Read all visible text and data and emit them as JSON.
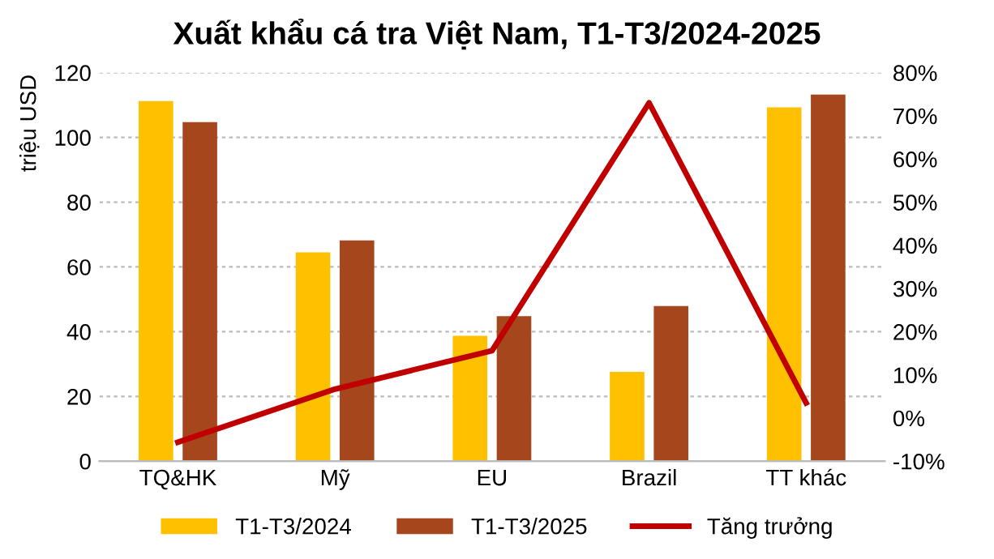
{
  "chart_data": {
    "type": "bar",
    "title": "Xuất khẩu cá tra Việt Nam, T1-T3/2024-2025",
    "ylabel": "triệu USD",
    "categories": [
      "TQ&HK",
      "Mỹ",
      "EU",
      "Brazil",
      "TT khác"
    ],
    "series": [
      {
        "name": "T1-T3/2024",
        "color": "#ffc000",
        "values": [
          111.2,
          64.5,
          38.7,
          27.6,
          109.3
        ]
      },
      {
        "name": "T1-T3/2025",
        "color": "#a5461c",
        "values": [
          104.7,
          68.2,
          44.8,
          47.9,
          113.2
        ]
      },
      {
        "name": "Tăng trưởng",
        "type": "line",
        "axis": "y2",
        "color": "#c00000",
        "values": [
          -5.6,
          6.7,
          15.6,
          73.0,
          3.5
        ]
      }
    ],
    "ylim": [
      0,
      120
    ],
    "yticks": [
      0,
      20,
      40,
      60,
      80,
      100,
      120
    ],
    "y2lim": [
      -10,
      80
    ],
    "y2ticks": [
      {
        "value": -10,
        "label": "-10%"
      },
      {
        "value": 0,
        "label": "0%"
      },
      {
        "value": 10,
        "label": "10%"
      },
      {
        "value": 20,
        "label": "20%"
      },
      {
        "value": 30,
        "label": "30%"
      },
      {
        "value": 40,
        "label": "40%"
      },
      {
        "value": 50,
        "label": "50%"
      },
      {
        "value": 60,
        "label": "60%"
      },
      {
        "value": 70,
        "label": "70%"
      },
      {
        "value": 80,
        "label": "80%"
      }
    ],
    "grid": "y",
    "legend": "bottom",
    "marker": "none",
    "line_style": "solid"
  }
}
